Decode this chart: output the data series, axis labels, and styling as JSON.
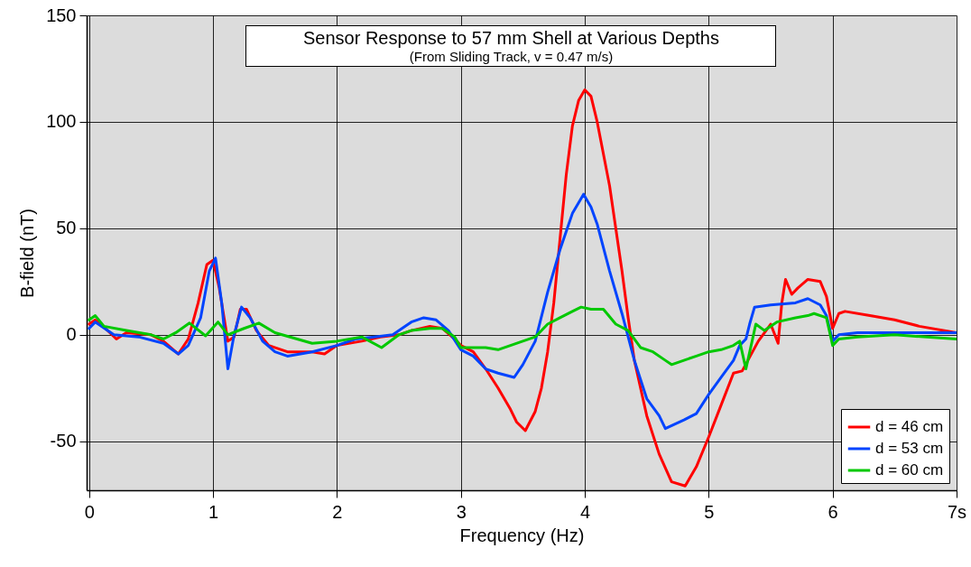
{
  "chart_data": {
    "type": "line",
    "title": "Sensor Response to 57 mm Shell at Various Depths",
    "subtitle": "(From Sliding Track, v = 0.47 m/s)",
    "xlabel": "Frequency (Hz)",
    "ylabel": "B-field (nT)",
    "xlim": [
      -0.02,
      7
    ],
    "xticks": [
      0,
      1,
      2,
      3,
      4,
      5,
      6,
      {
        "value": 7,
        "label": "7s"
      }
    ],
    "ylim": [
      -73,
      150
    ],
    "yticks": [
      -50,
      0,
      50,
      100,
      150
    ],
    "grid": true,
    "legend": "bottom right",
    "marker": "none",
    "line_style": "solid",
    "series": [
      {
        "name": "d = 46 cm",
        "color": "#ff0000",
        "x": [
          0,
          0.05,
          0.15,
          0.22,
          0.3,
          0.5,
          0.6,
          0.72,
          0.8,
          0.88,
          0.95,
          1.0,
          1.05,
          1.12,
          1.17,
          1.22,
          1.27,
          1.35,
          1.45,
          1.6,
          1.8,
          1.9,
          2.0,
          2.2,
          2.35,
          2.5,
          2.6,
          2.75,
          2.85,
          2.95,
          3.0,
          3.1,
          3.2,
          3.3,
          3.4,
          3.45,
          3.52,
          3.6,
          3.65,
          3.7,
          3.75,
          3.8,
          3.85,
          3.9,
          3.95,
          4.0,
          4.05,
          4.1,
          4.2,
          4.3,
          4.35,
          4.4,
          4.5,
          4.6,
          4.7,
          4.81,
          4.85,
          4.9,
          5.0,
          5.1,
          5.2,
          5.27,
          5.4,
          5.5,
          5.56,
          5.59,
          5.62,
          5.67,
          5.72,
          5.8,
          5.9,
          5.95,
          6.0,
          6.05,
          6.1,
          6.3,
          6.5,
          6.7,
          7.0
        ],
        "values": [
          5,
          7,
          2,
          -2,
          1,
          0,
          -3,
          -9,
          -2,
          15,
          33,
          35,
          22,
          -3,
          -1,
          12,
          12,
          2,
          -5,
          -8,
          -8,
          -9,
          -5,
          -3,
          -1,
          0,
          2,
          4,
          3,
          -2,
          -5,
          -8,
          -16,
          -25,
          -35,
          -41,
          -45,
          -36,
          -25,
          -8,
          15,
          45,
          75,
          98,
          110,
          115,
          112,
          100,
          70,
          30,
          8,
          -12,
          -38,
          -56,
          -69,
          -71,
          -67,
          -62,
          -48,
          -33,
          -18,
          -17,
          -3,
          5,
          -4,
          15,
          26,
          19,
          22,
          26,
          25,
          18,
          3,
          10,
          11,
          9,
          7,
          4,
          1
        ]
      },
      {
        "name": "d = 53 cm",
        "color": "#0044ff",
        "x": [
          0,
          0.05,
          0.2,
          0.4,
          0.6,
          0.72,
          0.8,
          0.9,
          0.97,
          1.02,
          1.07,
          1.12,
          1.17,
          1.23,
          1.3,
          1.4,
          1.5,
          1.6,
          1.8,
          2.0,
          2.15,
          2.3,
          2.45,
          2.6,
          2.7,
          2.8,
          2.9,
          3.0,
          3.1,
          3.2,
          3.3,
          3.43,
          3.5,
          3.6,
          3.7,
          3.8,
          3.9,
          3.99,
          4.05,
          4.1,
          4.2,
          4.3,
          4.4,
          4.5,
          4.6,
          4.65,
          4.8,
          4.9,
          5.0,
          5.1,
          5.2,
          5.25,
          5.3,
          5.33,
          5.37,
          5.5,
          5.7,
          5.8,
          5.9,
          5.95,
          6.0,
          6.05,
          6.2,
          6.5,
          7.0
        ],
        "values": [
          3,
          6,
          0,
          -1,
          -4,
          -9,
          -5,
          8,
          30,
          36,
          15,
          -16,
          0,
          13,
          8,
          -3,
          -8,
          -10,
          -8,
          -5,
          -2,
          -1,
          0,
          6,
          8,
          7,
          2,
          -7,
          -10,
          -16,
          -18,
          -20,
          -14,
          -3,
          20,
          40,
          57,
          66,
          60,
          52,
          30,
          10,
          -12,
          -30,
          -38,
          -44,
          -40,
          -37,
          -28,
          -20,
          -12,
          -5,
          -2,
          5,
          13,
          14,
          15,
          17,
          14,
          9,
          -3,
          0,
          1,
          1,
          1
        ]
      },
      {
        "name": "d = 60 cm",
        "color": "#00c800",
        "x": [
          0,
          0.05,
          0.12,
          0.3,
          0.5,
          0.6,
          0.7,
          0.81,
          0.94,
          1.04,
          1.12,
          1.25,
          1.37,
          1.5,
          1.8,
          2.0,
          2.2,
          2.36,
          2.5,
          2.6,
          2.75,
          2.85,
          2.95,
          3.0,
          3.2,
          3.3,
          3.5,
          3.6,
          3.7,
          3.8,
          3.9,
          3.97,
          4.05,
          4.15,
          4.25,
          4.35,
          4.45,
          4.55,
          4.65,
          4.7,
          4.8,
          4.9,
          5.0,
          5.1,
          5.2,
          5.25,
          5.3,
          5.35,
          5.38,
          5.45,
          5.55,
          5.7,
          5.8,
          5.85,
          5.95,
          6.0,
          6.05,
          6.2,
          6.5,
          7.0
        ],
        "values": [
          7,
          9,
          4,
          2,
          0,
          -2,
          1,
          5.5,
          -0.5,
          6,
          0,
          3,
          5.5,
          1,
          -4,
          -3,
          -1,
          -6,
          0,
          2,
          3,
          3,
          -1,
          -6,
          -6,
          -7,
          -3,
          -1,
          5,
          8,
          11,
          13,
          12,
          12,
          5,
          2,
          -6,
          -8,
          -12,
          -14,
          -12,
          -10,
          -8,
          -7,
          -5,
          -3,
          -16,
          -3,
          5,
          2,
          6,
          8,
          9,
          10,
          8,
          -5,
          -2,
          -1,
          0,
          -2
        ]
      }
    ]
  }
}
